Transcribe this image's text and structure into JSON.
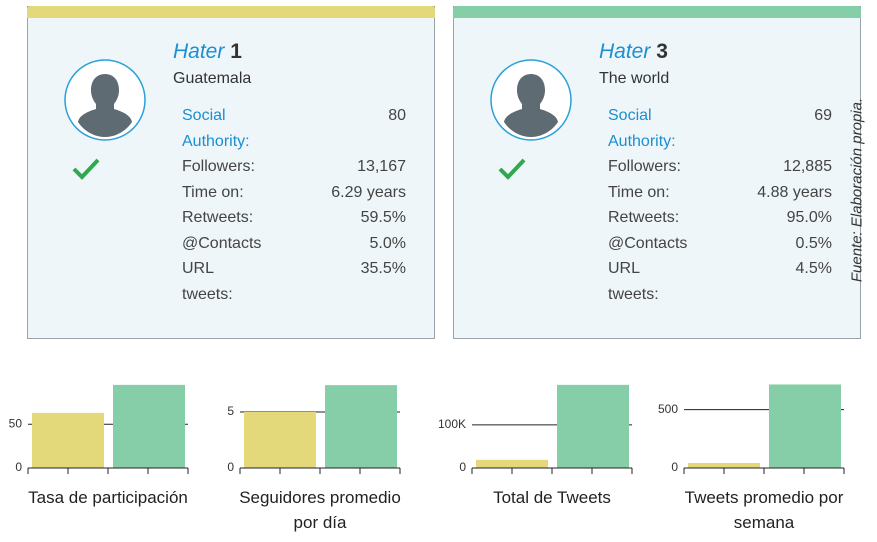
{
  "cards": [
    {
      "name": "Hater",
      "number": "1",
      "location": "Guatemala",
      "color": "#e3d87a",
      "rows": [
        {
          "label": "Social Authority:",
          "value": "80"
        },
        {
          "label": "Followers:",
          "value": "13,167"
        },
        {
          "label": "Time on:",
          "value": "6.29 years"
        },
        {
          "label": "Retweets:",
          "value": "59.5%"
        },
        {
          "label": "@Contacts",
          "value": "5.0%"
        },
        {
          "label": "URL tweets:",
          "value": "35.5%"
        }
      ]
    },
    {
      "name": "Hater",
      "number": "3",
      "location": "The world",
      "color": "#86cea8",
      "rows": [
        {
          "label": "Social Authority:",
          "value": "69"
        },
        {
          "label": "Followers:",
          "value": "12,885"
        },
        {
          "label": "Time on:",
          "value": "4.88 years"
        },
        {
          "label": "Retweets:",
          "value": "95.0%"
        },
        {
          "label": "@Contacts",
          "value": "0.5%"
        },
        {
          "label": "URL tweets:",
          "value": "4.5%"
        }
      ]
    }
  ],
  "source": "Fuente: Elaboración propia.",
  "chart_data": [
    {
      "type": "bar",
      "x_label": "Tasa de participación",
      "categories": [
        null,
        null
      ],
      "values": [
        63,
        95
      ],
      "colors": [
        "#e3d87a",
        "#86cea8"
      ],
      "ylim": [
        0,
        96
      ],
      "yticks": [
        0,
        50
      ],
      "grid": true
    },
    {
      "type": "bar",
      "x_label": "Seguidores promedio por día",
      "categories": [
        null,
        null
      ],
      "values": [
        5.0,
        7.4
      ],
      "colors": [
        "#e3d87a",
        "#86cea8"
      ],
      "ylim": [
        0,
        7.5
      ],
      "yticks": [
        0,
        5
      ],
      "grid": true
    },
    {
      "type": "bar",
      "x_label": "Total de Tweets",
      "categories": [
        null,
        null
      ],
      "values": [
        19000,
        193000
      ],
      "colors": [
        "#e3d87a",
        "#86cea8"
      ],
      "ylim": [
        0,
        195000
      ],
      "yticks": [
        0,
        {
          "value": 100000,
          "label": "100K"
        }
      ],
      "grid": true
    },
    {
      "type": "bar",
      "x_label": "Tweets promedio por semana",
      "categories": [
        null,
        null
      ],
      "values": [
        43,
        716
      ],
      "colors": [
        "#e3d87a",
        "#86cea8"
      ],
      "ylim": [
        0,
        720
      ],
      "yticks": [
        0,
        500
      ],
      "grid": true
    }
  ]
}
